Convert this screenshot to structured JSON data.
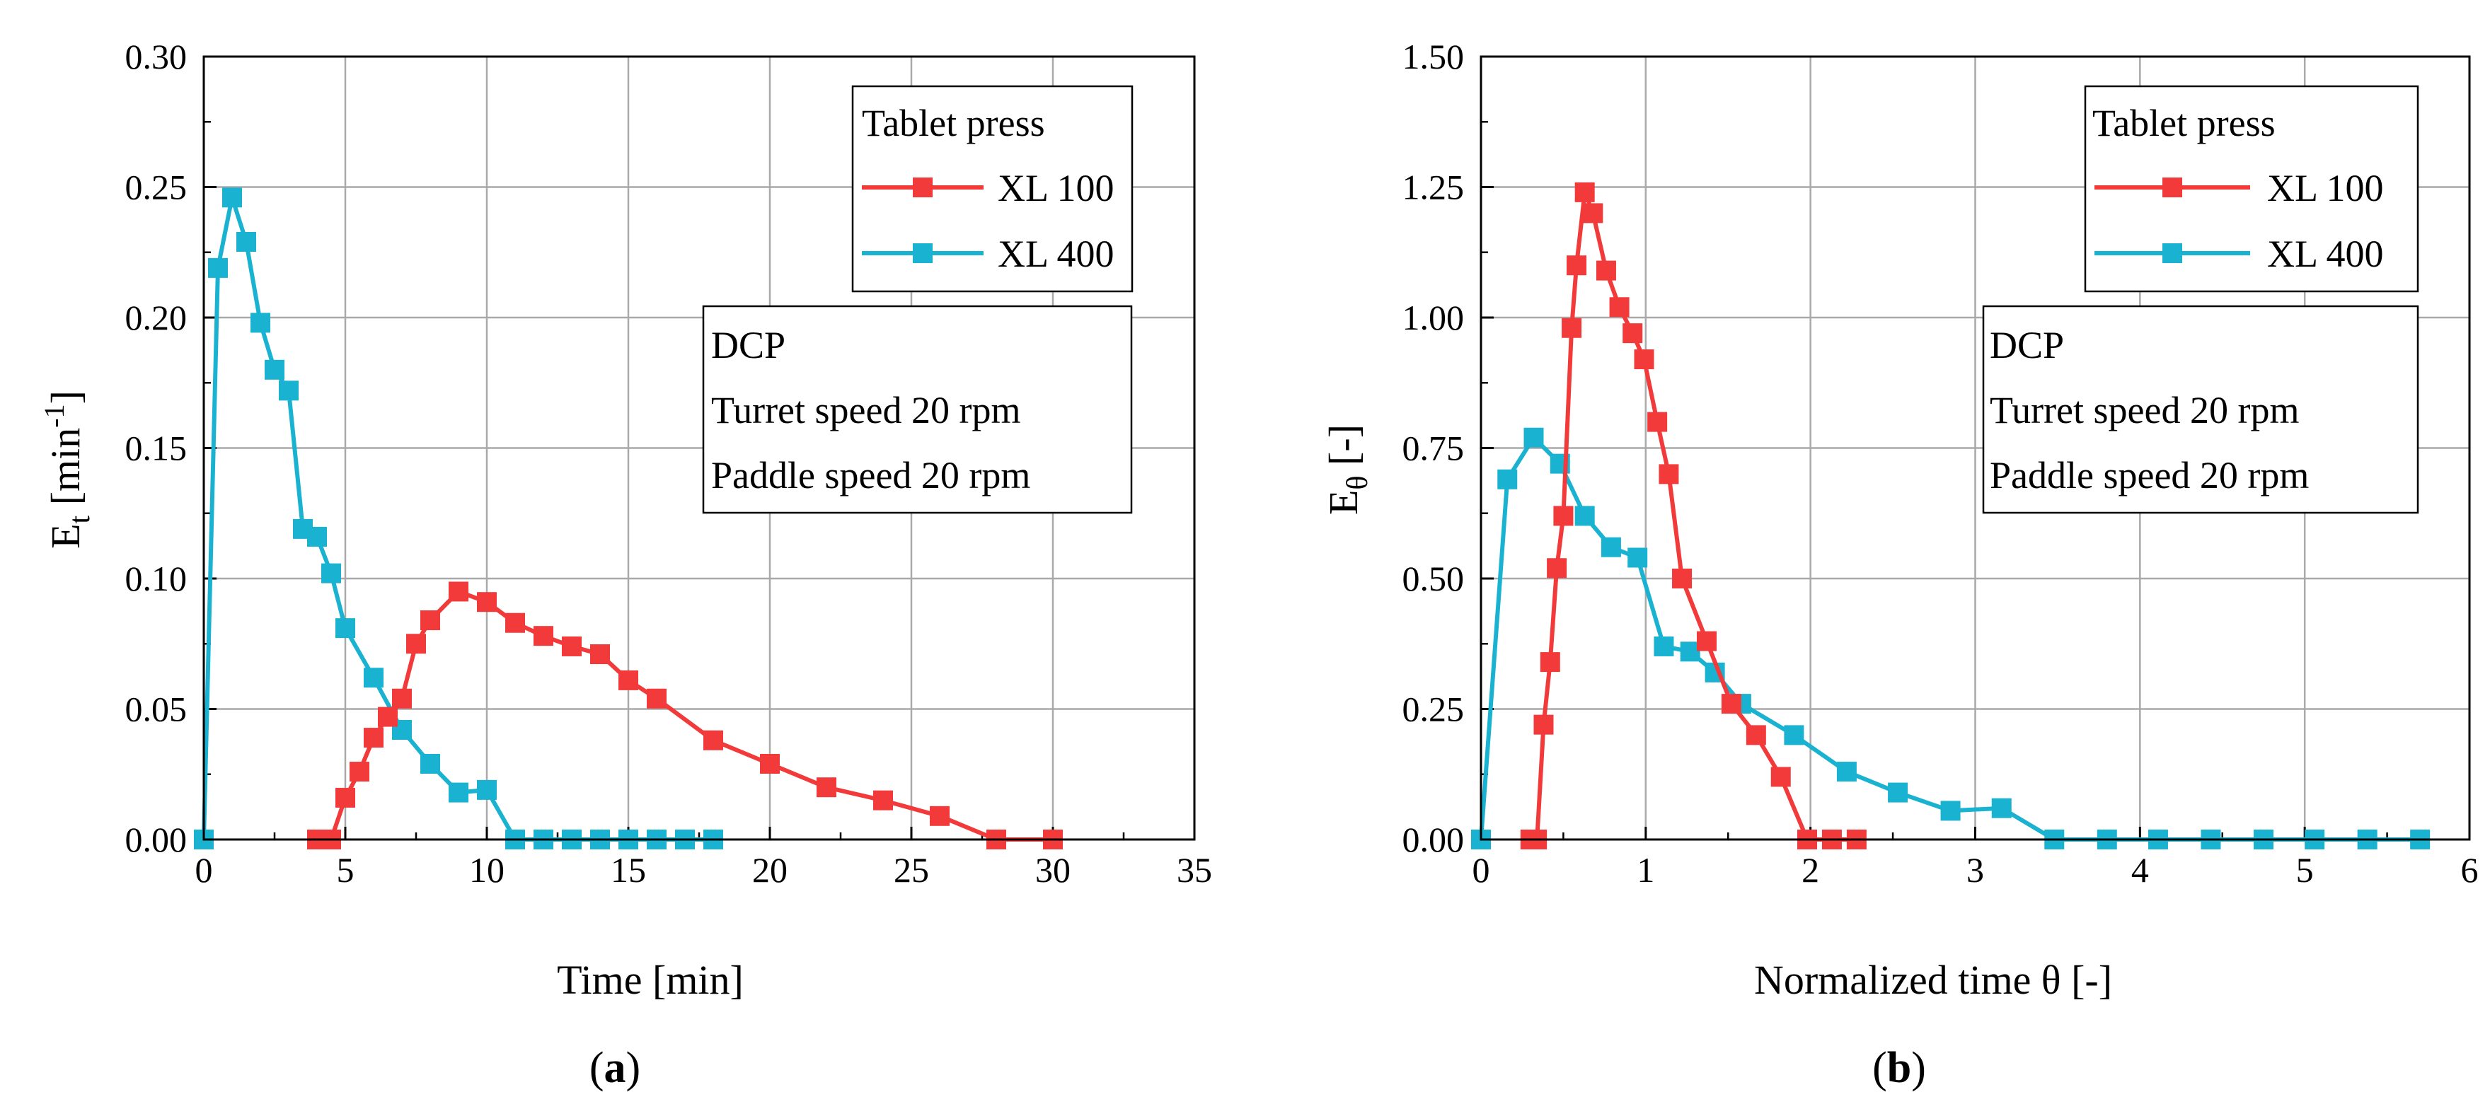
{
  "figure": {
    "colors": {
      "red": "#f23a3a",
      "cyan": "#1ab2d1",
      "grid": "#a9a9a9",
      "axis": "#000000"
    }
  },
  "chart_data": [
    {
      "type": "line",
      "panel_label": "a",
      "xlabel": "Time [min]",
      "ylabel_base": "E",
      "ylabel_sub": "t",
      "ylabel_unit_pre": " [min",
      "ylabel_unit_sup": "-1",
      "ylabel_unit_post": "]",
      "xlim": [
        0,
        35
      ],
      "ylim": [
        0,
        0.3
      ],
      "xticks": [
        "0",
        "5",
        "10",
        "15",
        "20",
        "25",
        "30",
        "35"
      ],
      "xtick_values": [
        0,
        5,
        10,
        15,
        20,
        25,
        30,
        35
      ],
      "yticks": [
        "0.00",
        "0.05",
        "0.10",
        "0.15",
        "0.20",
        "0.25",
        "0.30"
      ],
      "ytick_values": [
        0,
        0.05,
        0.1,
        0.15,
        0.2,
        0.25,
        0.3
      ],
      "legend": {
        "title": "Tablet press",
        "placement": "top-right"
      },
      "annotation": {
        "lines": [
          "DCP",
          "Turret speed 20 rpm",
          "Paddle speed 20 rpm"
        ],
        "placement": "right"
      },
      "series": [
        {
          "name": "XL 100",
          "color": "#f23a3a",
          "x": [
            4.0,
            4.5,
            5.0,
            5.5,
            6.0,
            6.5,
            7.0,
            7.5,
            8.0,
            9.0,
            10.0,
            11.0,
            12.0,
            13.0,
            14.0,
            15.0,
            16.0,
            18.0,
            20.0,
            22.0,
            24.0,
            26.0,
            28.0,
            30.0
          ],
          "y": [
            0.0,
            0.0,
            0.016,
            0.026,
            0.039,
            0.047,
            0.054,
            0.075,
            0.084,
            0.095,
            0.091,
            0.083,
            0.078,
            0.074,
            0.071,
            0.061,
            0.054,
            0.038,
            0.029,
            0.02,
            0.015,
            0.009,
            0.0,
            0.0
          ]
        },
        {
          "name": "XL 400",
          "color": "#1ab2d1",
          "x": [
            0.0,
            0.5,
            1.0,
            1.5,
            2.0,
            2.5,
            3.0,
            3.5,
            4.0,
            4.5,
            5.0,
            6.0,
            7.0,
            8.0,
            9.0,
            10.0,
            11.0,
            12.0,
            13.0,
            14.0,
            15.0,
            16.0,
            17.0,
            18.0
          ],
          "y": [
            0.0,
            0.219,
            0.246,
            0.229,
            0.198,
            0.18,
            0.172,
            0.119,
            0.116,
            0.102,
            0.081,
            0.062,
            0.042,
            0.029,
            0.018,
            0.019,
            0.0,
            0.0,
            0.0,
            0.0,
            0.0,
            0.0,
            0.0,
            0.0
          ]
        }
      ]
    },
    {
      "type": "line",
      "panel_label": "b",
      "xlabel": "Normalized time θ [-]",
      "ylabel_base": "E",
      "ylabel_sub": "θ",
      "ylabel_unit_pre": " [-]",
      "ylabel_unit_sup": "",
      "ylabel_unit_post": "",
      "xlim": [
        0,
        6
      ],
      "ylim": [
        0,
        1.5
      ],
      "xticks": [
        "0",
        "1",
        "2",
        "3",
        "4",
        "5",
        "6"
      ],
      "xtick_values": [
        0,
        1,
        2,
        3,
        4,
        5,
        6
      ],
      "yticks": [
        "0.00",
        "0.25",
        "0.50",
        "0.75",
        "1.00",
        "1.25",
        "1.50"
      ],
      "ytick_values": [
        0,
        0.25,
        0.5,
        0.75,
        1.0,
        1.25,
        1.5
      ],
      "legend": {
        "title": "Tablet press",
        "placement": "top-right"
      },
      "annotation": {
        "lines": [
          "DCP",
          "Turret speed 20 rpm",
          "Paddle speed 20 rpm"
        ],
        "placement": "right"
      },
      "series": [
        {
          "name": "XL 100",
          "color": "#f23a3a",
          "x": [
            0.3,
            0.34,
            0.38,
            0.42,
            0.46,
            0.5,
            0.55,
            0.58,
            0.63,
            0.68,
            0.76,
            0.84,
            0.92,
            0.99,
            1.07,
            1.14,
            1.22,
            1.37,
            1.52,
            1.67,
            1.82,
            1.98,
            2.13,
            2.28
          ],
          "y": [
            0.0,
            0.0,
            0.22,
            0.34,
            0.52,
            0.62,
            0.98,
            1.1,
            1.24,
            1.2,
            1.09,
            1.02,
            0.97,
            0.92,
            0.8,
            0.7,
            0.5,
            0.38,
            0.26,
            0.2,
            0.12,
            0.0,
            0.0,
            0.0
          ]
        },
        {
          "name": "XL 400",
          "color": "#1ab2d1",
          "x": [
            0.0,
            0.16,
            0.32,
            0.48,
            0.63,
            0.79,
            0.95,
            1.11,
            1.27,
            1.42,
            1.58,
            1.9,
            2.22,
            2.53,
            2.85,
            3.16,
            3.48,
            3.8,
            4.11,
            4.43,
            4.75,
            5.06,
            5.38,
            5.7
          ],
          "y": [
            0.0,
            0.69,
            0.77,
            0.72,
            0.62,
            0.56,
            0.54,
            0.37,
            0.36,
            0.32,
            0.26,
            0.2,
            0.13,
            0.09,
            0.055,
            0.06,
            0.0,
            0.0,
            0.0,
            0.0,
            0.0,
            0.0,
            0.0,
            0.0
          ]
        }
      ]
    }
  ]
}
